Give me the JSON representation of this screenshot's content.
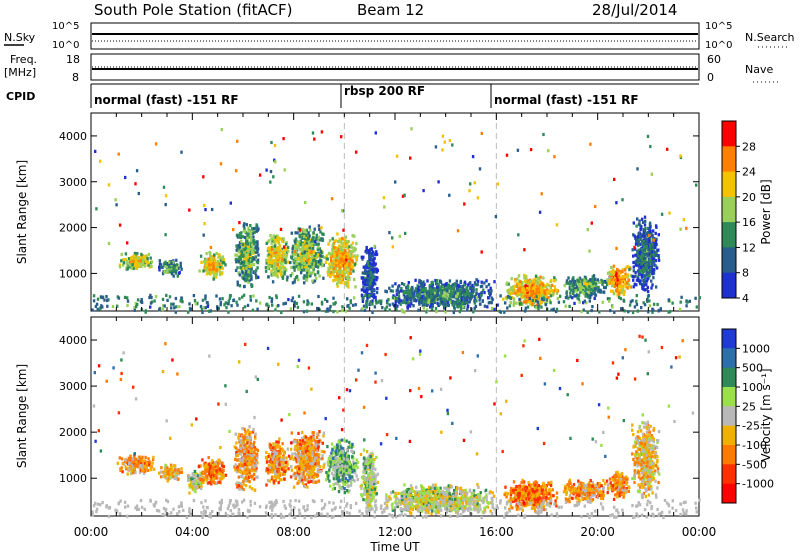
{
  "header": {
    "station": "South Pole Station (fitACF)",
    "beam": "Beam 12",
    "date": "28/Jul/2014"
  },
  "top_panels": {
    "nsky": {
      "left_label": "N.Sky",
      "left_ticks": [
        "10^5",
        "10^0"
      ],
      "right_ticks": [
        "10^5",
        "10^0"
      ],
      "right_label": "N.Search"
    },
    "freq": {
      "left_label_line1": "Freq.",
      "left_label_line2": "[MHz]",
      "left_ticks": [
        "18",
        "8"
      ],
      "right_ticks": [
        "60",
        "0"
      ],
      "right_label": "Nave"
    },
    "cpid": {
      "label": "CPID",
      "segments": [
        {
          "text": "normal (fast) -151 RF",
          "start_hour": 0
        },
        {
          "text": "rbsp 200 RF",
          "start_hour": 10
        },
        {
          "text": "normal (fast) -151 RF",
          "start_hour": 16
        }
      ]
    }
  },
  "x_axis": {
    "label": "Time UT",
    "ticks": [
      "00:00",
      "04:00",
      "08:00",
      "12:00",
      "16:00",
      "20:00",
      "00:00"
    ]
  },
  "power_colorbar": {
    "label": "Power [dB]",
    "ticks": [
      "28",
      "24",
      "20",
      "16",
      "12",
      "8",
      "4"
    ],
    "colors": [
      "#ff0000",
      "#ff7f00",
      "#f3c300",
      "#9ad05a",
      "#2e8b57",
      "#275e8c",
      "#1f30d0"
    ]
  },
  "velocity_colorbar": {
    "label": "Velocity [m s⁻¹]",
    "ticks": [
      "1000",
      "500",
      "100",
      "25",
      "-25",
      "-100",
      "-500",
      "-1000"
    ],
    "colors": [
      "#203bd5",
      "#2c6faa",
      "#2e8b57",
      "#9be04a",
      "#b8b8b8",
      "#f0b000",
      "#ff7a00",
      "#ff3000",
      "#ff0000"
    ]
  },
  "chart_data": [
    {
      "type": "heatmap",
      "title": "",
      "xlabel": "Time UT",
      "ylabel": "Slant Range [km]",
      "xlim": [
        0,
        24
      ],
      "ylim": [
        180,
        4500
      ],
      "yticks": [
        1000,
        2000,
        3000,
        4000
      ],
      "colorbar": "Power [dB]",
      "clim": [
        0,
        30
      ],
      "mode_boundaries_hours": [
        10,
        16
      ],
      "blobs": [
        {
          "t0": 1.0,
          "t1": 2.5,
          "r0": 1100,
          "r1": 1500,
          "value": 20
        },
        {
          "t0": 2.6,
          "t1": 3.6,
          "r0": 950,
          "r1": 1350,
          "value": 14
        },
        {
          "t0": 4.2,
          "t1": 5.3,
          "r0": 900,
          "r1": 1500,
          "value": 22
        },
        {
          "t0": 5.6,
          "t1": 6.6,
          "r0": 700,
          "r1": 2200,
          "value": 16
        },
        {
          "t0": 6.8,
          "t1": 7.8,
          "r0": 850,
          "r1": 1900,
          "value": 21
        },
        {
          "t0": 7.8,
          "t1": 9.2,
          "r0": 800,
          "r1": 2100,
          "value": 18
        },
        {
          "t0": 9.2,
          "t1": 10.5,
          "r0": 700,
          "r1": 1900,
          "value": 23
        },
        {
          "t0": 10.6,
          "t1": 11.3,
          "r0": 250,
          "r1": 1700,
          "value": 8
        },
        {
          "t0": 11.5,
          "t1": 16.0,
          "r0": 250,
          "r1": 900,
          "value": 12
        },
        {
          "t0": 16.2,
          "t1": 18.5,
          "r0": 300,
          "r1": 1000,
          "value": 24
        },
        {
          "t0": 18.5,
          "t1": 20.5,
          "r0": 500,
          "r1": 1000,
          "value": 15
        },
        {
          "t0": 20.3,
          "t1": 21.3,
          "r0": 550,
          "r1": 1200,
          "value": 26
        },
        {
          "t0": 21.3,
          "t1": 22.4,
          "r0": 600,
          "r1": 2300,
          "value": 10
        }
      ]
    },
    {
      "type": "heatmap",
      "title": "",
      "xlabel": "Time UT",
      "ylabel": "Slant Range [km]",
      "xlim": [
        0,
        24
      ],
      "ylim": [
        180,
        4500
      ],
      "yticks": [
        1000,
        2000,
        3000,
        4000
      ],
      "colorbar": "Velocity [m s⁻¹]",
      "clim": [
        -1000,
        1000
      ],
      "mode_boundaries_hours": [
        10,
        16
      ],
      "blobs": [
        {
          "t0": 1.0,
          "t1": 2.5,
          "r0": 1100,
          "r1": 1550,
          "value": -300
        },
        {
          "t0": 2.6,
          "t1": 3.6,
          "r0": 950,
          "r1": 1350,
          "value": -200
        },
        {
          "t0": 3.7,
          "t1": 4.4,
          "r0": 700,
          "r1": 1200,
          "value": 100
        },
        {
          "t0": 4.2,
          "t1": 5.3,
          "r0": 850,
          "r1": 1500,
          "value": -400
        },
        {
          "t0": 5.6,
          "t1": 6.6,
          "r0": 700,
          "r1": 2200,
          "value": -250
        },
        {
          "t0": 6.8,
          "t1": 7.8,
          "r0": 850,
          "r1": 1900,
          "value": -350
        },
        {
          "t0": 7.8,
          "t1": 9.2,
          "r0": 800,
          "r1": 2100,
          "value": -300
        },
        {
          "t0": 9.2,
          "t1": 10.5,
          "r0": 700,
          "r1": 1900,
          "value": 300
        },
        {
          "t0": 10.6,
          "t1": 11.3,
          "r0": 250,
          "r1": 1700,
          "value": 150
        },
        {
          "t0": 11.5,
          "t1": 16.0,
          "r0": 250,
          "r1": 900,
          "value": 60
        },
        {
          "t0": 16.2,
          "t1": 18.5,
          "r0": 300,
          "r1": 1000,
          "value": -450
        },
        {
          "t0": 18.5,
          "t1": 20.5,
          "r0": 500,
          "r1": 1000,
          "value": -300
        },
        {
          "t0": 20.3,
          "t1": 21.3,
          "r0": 550,
          "r1": 1200,
          "value": -400
        },
        {
          "t0": 21.3,
          "t1": 22.4,
          "r0": 600,
          "r1": 2300,
          "value": -150
        }
      ]
    }
  ]
}
